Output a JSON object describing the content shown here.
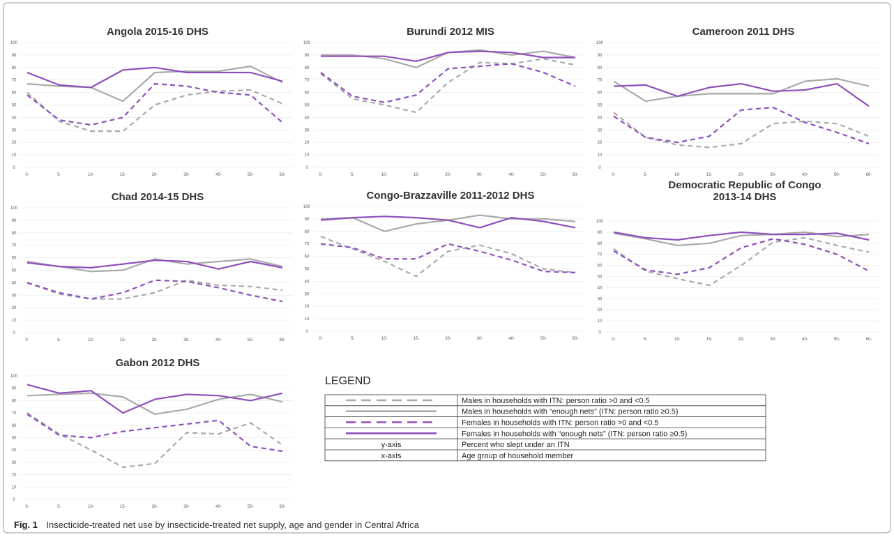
{
  "colors": {
    "male": "#aaaaaa",
    "female": "#8e4fbd",
    "border": "#9a9a9a"
  },
  "series_styles": [
    "male-low",
    "male-enough",
    "female-low",
    "female-enough"
  ],
  "chart_data": [
    {
      "type": "line",
      "title": [
        "Angola 2015-16 DHS"
      ],
      "categories": [
        "0-",
        "5-",
        "10-",
        "15-",
        "20-",
        "30-",
        "40-",
        "50-",
        "60-"
      ],
      "yticks": [
        "0",
        "10",
        "20",
        "30",
        "40",
        "50",
        "60",
        "70",
        "80",
        "90",
        "100"
      ],
      "ylim": [
        0,
        100
      ],
      "series": [
        {
          "values": [
            60,
            37,
            29,
            29,
            50,
            58,
            61,
            62,
            51
          ]
        },
        {
          "values": [
            67,
            65,
            64,
            53,
            76,
            77,
            77,
            81,
            68
          ]
        },
        {
          "values": [
            58,
            38,
            34,
            40,
            67,
            65,
            60,
            58,
            36
          ]
        },
        {
          "values": [
            76,
            66,
            64,
            78,
            80,
            76,
            76,
            76,
            69
          ]
        }
      ]
    },
    {
      "type": "line",
      "title": [
        "Burundi 2012 MIS"
      ],
      "categories": [
        "0-",
        "5-",
        "10-",
        "15-",
        "20-",
        "30-",
        "40-",
        "50-",
        "60-"
      ],
      "yticks": [
        "0",
        "10",
        "20",
        "30",
        "40",
        "50",
        "60",
        "70",
        "80",
        "90",
        "100"
      ],
      "ylim": [
        0,
        100
      ],
      "series": [
        {
          "values": [
            75,
            55,
            50,
            44,
            68,
            84,
            83,
            87,
            82
          ]
        },
        {
          "values": [
            90,
            90,
            87,
            80,
            92,
            94,
            90,
            93,
            88
          ]
        },
        {
          "values": [
            76,
            57,
            52,
            58,
            79,
            81,
            83,
            76,
            65
          ]
        },
        {
          "values": [
            89,
            89,
            89,
            85,
            92,
            93,
            92,
            88,
            88
          ]
        }
      ]
    },
    {
      "type": "line",
      "title": [
        "Cameroon 2011 DHS"
      ],
      "categories": [
        "0-",
        "5-",
        "10-",
        "15-",
        "20-",
        "30-",
        "40-",
        "50-",
        "60-"
      ],
      "yticks": [
        "0",
        "10",
        "20",
        "30",
        "40",
        "50",
        "60",
        "70",
        "80",
        "90",
        "100"
      ],
      "ylim": [
        0,
        100
      ],
      "series": [
        {
          "values": [
            44,
            24,
            18,
            16,
            19,
            35,
            37,
            35,
            25
          ]
        },
        {
          "values": [
            69,
            53,
            57,
            59,
            59,
            59,
            69,
            71,
            65
          ]
        },
        {
          "values": [
            41,
            24,
            20,
            25,
            46,
            48,
            36,
            28,
            19
          ]
        },
        {
          "values": [
            65,
            66,
            57,
            64,
            67,
            61,
            62,
            67,
            49
          ]
        }
      ]
    },
    {
      "type": "line",
      "title": [
        "Chad 2014-15 DHS"
      ],
      "categories": [
        "0-",
        "5-",
        "10-",
        "15-",
        "20-",
        "30-",
        "40-",
        "50-",
        "60-"
      ],
      "yticks": [
        "0",
        "10",
        "20",
        "30",
        "40",
        "50",
        "60",
        "70",
        "80",
        "90",
        "100"
      ],
      "ylim": [
        0,
        100
      ],
      "series": [
        {
          "values": [
            40,
            31,
            27,
            27,
            32,
            42,
            38,
            37,
            34
          ]
        },
        {
          "values": [
            57,
            53,
            49,
            50,
            59,
            55,
            57,
            59,
            53
          ]
        },
        {
          "values": [
            40,
            32,
            27,
            32,
            42,
            41,
            36,
            30,
            25
          ]
        },
        {
          "values": [
            56,
            53,
            52,
            55,
            58,
            57,
            51,
            57,
            52
          ]
        }
      ]
    },
    {
      "type": "line",
      "title": [
        "Congo-Brazzaville 2011-2012 DHS"
      ],
      "categories": [
        "0-",
        "5-",
        "10-",
        "15-",
        "20-",
        "30-",
        "40-",
        "50-",
        "60-"
      ],
      "yticks": [
        "0",
        "10",
        "20",
        "30",
        "40",
        "50",
        "60",
        "70",
        "80",
        "90",
        "100"
      ],
      "ylim": [
        0,
        100
      ],
      "series": [
        {
          "values": [
            76,
            66,
            56,
            44,
            64,
            69,
            62,
            50,
            47
          ]
        },
        {
          "values": [
            90,
            91,
            80,
            86,
            89,
            93,
            90,
            90,
            88
          ]
        },
        {
          "values": [
            70,
            67,
            58,
            58,
            70,
            64,
            57,
            48,
            47
          ]
        },
        {
          "values": [
            89,
            91,
            92,
            91,
            89,
            83,
            91,
            88,
            83
          ]
        }
      ]
    },
    {
      "type": "line",
      "title": [
        "Democratic Republic of Congo",
        "2013-14 DHS"
      ],
      "categories": [
        "0-",
        "5-",
        "10-",
        "15-",
        "20-",
        "30-",
        "40-",
        "50-",
        "60-"
      ],
      "yticks": [
        "0",
        "10",
        "20",
        "30",
        "40",
        "50",
        "60",
        "70",
        "80",
        "90",
        "100"
      ],
      "ylim": [
        0,
        100
      ],
      "series": [
        {
          "values": [
            75,
            55,
            48,
            42,
            60,
            81,
            85,
            78,
            72
          ]
        },
        {
          "values": [
            89,
            84,
            78,
            80,
            87,
            88,
            90,
            86,
            88
          ]
        },
        {
          "values": [
            73,
            56,
            52,
            58,
            76,
            84,
            79,
            70,
            55
          ]
        },
        {
          "values": [
            90,
            85,
            83,
            87,
            90,
            88,
            88,
            89,
            83
          ]
        }
      ]
    },
    {
      "type": "line",
      "title": [
        "Gabon 2012 DHS"
      ],
      "categories": [
        "0-",
        "5-",
        "10-",
        "15-",
        "20-",
        "30-",
        "40-",
        "50-",
        "60-"
      ],
      "yticks": [
        "0",
        "10",
        "20",
        "30",
        "40",
        "50",
        "60",
        "70",
        "80",
        "90",
        "100"
      ],
      "ylim": [
        0,
        100
      ],
      "series": [
        {
          "values": [
            70,
            53,
            40,
            26,
            29,
            54,
            53,
            62,
            44
          ]
        },
        {
          "values": [
            84,
            85,
            86,
            83,
            69,
            73,
            81,
            85,
            79
          ]
        },
        {
          "values": [
            69,
            52,
            50,
            55,
            58,
            61,
            64,
            43,
            39
          ]
        },
        {
          "values": [
            93,
            86,
            88,
            70,
            81,
            85,
            84,
            80,
            86
          ]
        }
      ]
    }
  ],
  "legend": {
    "title": "LEGEND",
    "rows": [
      {
        "swatch": "male-low",
        "text": "Males in households with ITN: person ratio >0 and <0.5"
      },
      {
        "swatch": "male-enough",
        "text": "Males in households with “enough nets” (ITN: person ratio ≥0.5)"
      },
      {
        "swatch": "female-low",
        "text": "Females in households with ITN: person ratio >0 and <0.5"
      },
      {
        "swatch": "female-enough",
        "text": "Females in households with “enough nets” (ITN: person ratio ≥0.5)"
      },
      {
        "label": "y-axis",
        "text": "Percent who slept under an ITN"
      },
      {
        "label": "x-axis",
        "text": "Age group of household member"
      }
    ]
  },
  "caption": {
    "label": "Fig. 1",
    "text": "Insecticide-treated net use by insecticide-treated net supply, age and gender in Central Africa"
  }
}
